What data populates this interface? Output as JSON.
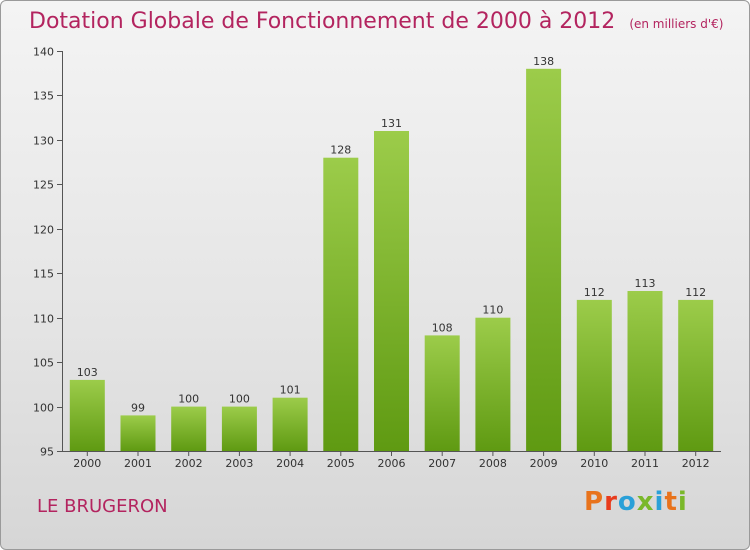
{
  "header": {
    "title": "Dotation Globale de Fonctionnement de 2000 à 2012",
    "unit_note": "(en milliers d'€)"
  },
  "footer": {
    "commune": "LE BRUGERON",
    "logo_text": "Proxiti",
    "logo_colors": [
      "#e8731c",
      "#e83b1c",
      "#2aa0d8",
      "#7ab82a",
      "#2aa0d8",
      "#e8731c",
      "#7ab82a"
    ]
  },
  "colors": {
    "title": "#b3245f",
    "bar_top": "#9ccc4a",
    "bar_bottom": "#5f9a12"
  },
  "chart_data": {
    "type": "bar",
    "categories": [
      "2000",
      "2001",
      "2002",
      "2003",
      "2004",
      "2005",
      "2006",
      "2007",
      "2008",
      "2009",
      "2010",
      "2011",
      "2012"
    ],
    "values": [
      103,
      99,
      100,
      100,
      101,
      128,
      131,
      108,
      110,
      138,
      112,
      113,
      112
    ],
    "ylim": [
      95,
      140
    ],
    "yticks": [
      95,
      100,
      105,
      110,
      115,
      120,
      125,
      130,
      135,
      140
    ],
    "xlabel": "",
    "ylabel": "",
    "grid": false,
    "data_labels": true
  }
}
